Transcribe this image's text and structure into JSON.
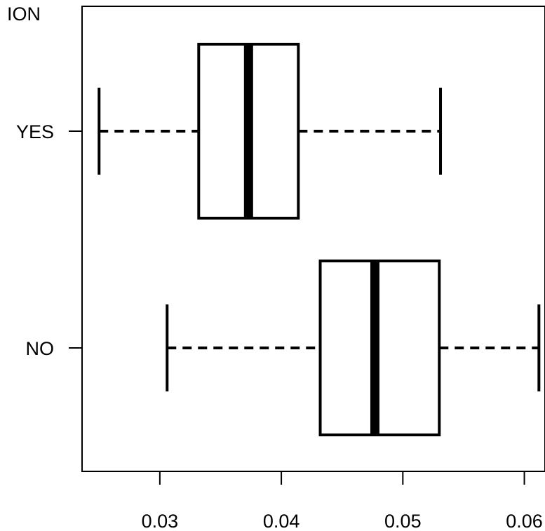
{
  "chart_data": {
    "type": "boxplot",
    "orientation": "horizontal",
    "title": "ION",
    "xlabel": "",
    "ylabel": "",
    "xlim": [
      0.0236,
      0.0617
    ],
    "x_ticks": [
      0.03,
      0.04,
      0.05,
      0.06
    ],
    "x_tick_labels": [
      "0.03",
      "0.04",
      "0.05",
      "0.06"
    ],
    "categories": [
      "YES",
      "NO"
    ],
    "boxes": [
      {
        "name": "YES",
        "whisker_low": 0.025,
        "q1": 0.0332,
        "median": 0.0373,
        "q3": 0.0414,
        "whisker_high": 0.0531
      },
      {
        "name": "NO",
        "whisker_low": 0.0306,
        "q1": 0.0432,
        "median": 0.0477,
        "q3": 0.053,
        "whisker_high": 0.0612
      }
    ],
    "grid": false,
    "legend": "none"
  }
}
